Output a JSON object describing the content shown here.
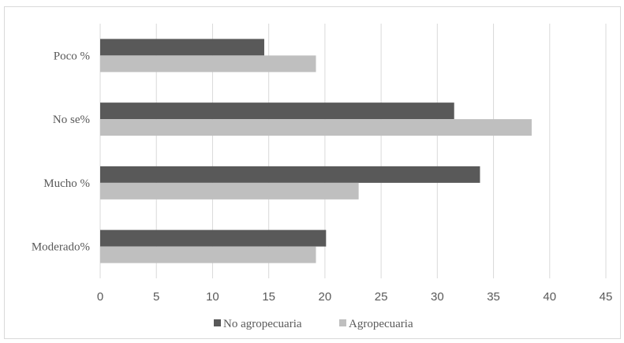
{
  "chart_data": {
    "type": "bar",
    "orientation": "horizontal",
    "categories": [
      "Poco %",
      "No se%",
      "Mucho %",
      "Moderado%"
    ],
    "series": [
      {
        "name": "No agropecuaria",
        "values": [
          14.6,
          31.5,
          33.8,
          20.1
        ],
        "color": "#595959"
      },
      {
        "name": "Agropecuaria",
        "values": [
          19.2,
          38.4,
          23.0,
          19.2
        ],
        "color": "#bfbfbf"
      }
    ],
    "x_ticks": [
      0,
      5,
      10,
      15,
      20,
      25,
      30,
      35,
      40,
      45
    ],
    "xlim": [
      0,
      45
    ],
    "grid": true,
    "legend_position": "bottom",
    "gridline_color": "#d9d9d9"
  }
}
